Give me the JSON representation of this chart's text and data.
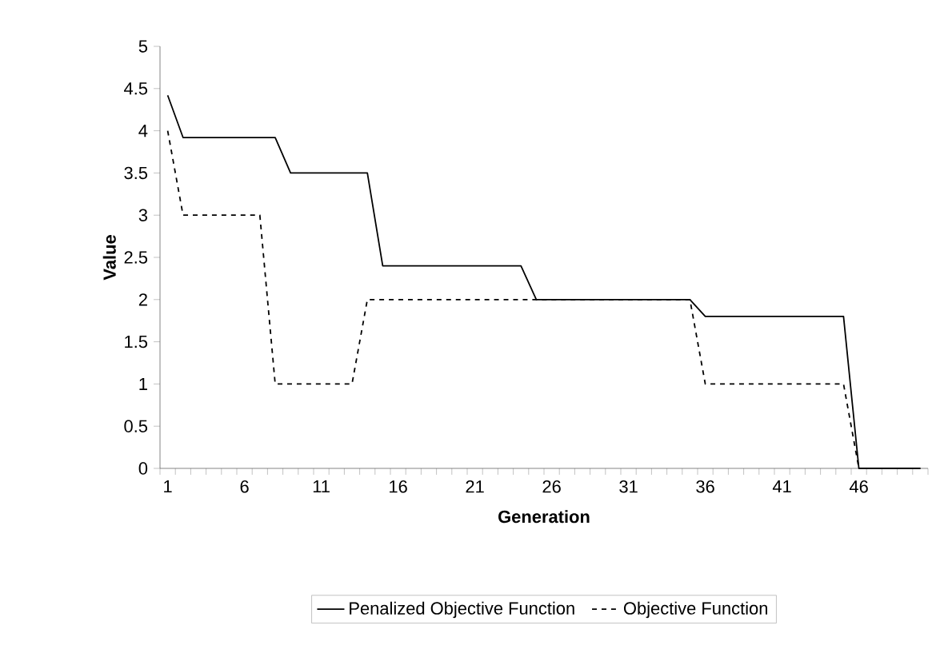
{
  "chart_data": {
    "type": "line",
    "xlabel": "Generation",
    "ylabel": "Value",
    "categories": [
      "1",
      null,
      null,
      null,
      null,
      "6",
      null,
      null,
      null,
      null,
      "11",
      null,
      null,
      null,
      null,
      "16",
      null,
      null,
      null,
      null,
      "21",
      null,
      null,
      null,
      null,
      "26",
      null,
      null,
      null,
      null,
      "31",
      null,
      null,
      null,
      null,
      "36",
      null,
      null,
      null,
      null,
      "41",
      null,
      null,
      null,
      null,
      "46",
      null,
      null,
      null,
      null
    ],
    "series": [
      {
        "name": "Penalized Objective Function",
        "color": "#000000",
        "line_style": "solid",
        "values": [
          4.42,
          3.92,
          3.92,
          3.92,
          3.92,
          3.92,
          3.92,
          3.92,
          3.5,
          3.5,
          3.5,
          3.5,
          3.5,
          3.5,
          2.4,
          2.4,
          2.4,
          2.4,
          2.4,
          2.4,
          2.4,
          2.4,
          2.4,
          2.4,
          2.0,
          2.0,
          2.0,
          2.0,
          2.0,
          2.0,
          2.0,
          2.0,
          2.0,
          2.0,
          2.0,
          1.8,
          1.8,
          1.8,
          1.8,
          1.8,
          1.8,
          1.8,
          1.8,
          1.8,
          1.8,
          0,
          0,
          0,
          0,
          0
        ]
      },
      {
        "name": "Objective Function",
        "color": "#000000",
        "line_style": "dashed",
        "values": [
          4.0,
          3.0,
          3.0,
          3.0,
          3.0,
          3.0,
          3.0,
          1.0,
          1.0,
          1.0,
          1.0,
          1.0,
          1.0,
          2.0,
          2.0,
          2.0,
          2.0,
          2.0,
          2.0,
          2.0,
          2.0,
          2.0,
          2.0,
          2.0,
          2.0,
          2.0,
          2.0,
          2.0,
          2.0,
          2.0,
          2.0,
          2.0,
          2.0,
          2.0,
          2.0,
          1.0,
          1.0,
          1.0,
          1.0,
          1.0,
          1.0,
          1.0,
          1.0,
          1.0,
          1.0,
          0,
          0,
          0,
          0,
          0
        ]
      }
    ],
    "ylim": [
      0,
      5
    ],
    "yticks": [
      0,
      0.5,
      1,
      1.5,
      2,
      2.5,
      3,
      3.5,
      4,
      4.5,
      5
    ],
    "grid": false,
    "legend": "bottom",
    "marker": "none"
  }
}
